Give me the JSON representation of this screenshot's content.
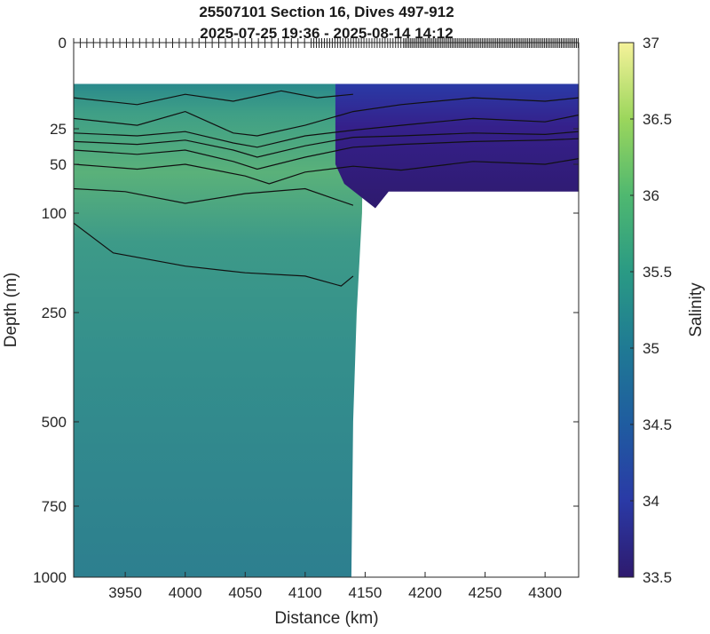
{
  "chart_data": {
    "type": "heatmap",
    "title": "25507101 Section 16, Dives 497-912",
    "subtitle": "2025-07-25 19:36 - 2025-08-14 14:12",
    "xlabel": "Distance (km)",
    "ylabel": "Depth (m)",
    "colorbar_label": "Salinity",
    "xlim": [
      3907,
      4328
    ],
    "ylim": [
      0,
      1000
    ],
    "x_ticks": [
      3950,
      4000,
      4050,
      4100,
      4150,
      4200,
      4250,
      4300
    ],
    "y_ticks": [
      0,
      25,
      50,
      100,
      250,
      500,
      750,
      1000
    ],
    "colorbar_ticks": [
      33.5,
      34,
      34.5,
      35,
      35.5,
      36,
      36.5,
      37
    ],
    "color_range": [
      33.5,
      37
    ],
    "colormap": [
      "#2e1a6e",
      "#2a3aa6",
      "#1f5ca0",
      "#1f7a94",
      "#2a9a84",
      "#4fb870",
      "#9bd65c",
      "#f5f29a"
    ],
    "grid": false,
    "data_coverage": {
      "deep_section_end_km": 4140,
      "shallow_section_end_km": 4328,
      "top_depth_m": 12,
      "shallow_max_depth_m": 78
    },
    "contours": [
      {
        "x": [
          3907,
          3960,
          4000,
          4040,
          4080,
          4110,
          4140
        ],
        "y": [
          16,
          18,
          15,
          17,
          14,
          16,
          15
        ]
      },
      {
        "x": [
          3907,
          3960,
          4000,
          4040,
          4060,
          4100,
          4140,
          4180,
          4240,
          4300,
          4328
        ],
        "y": [
          22,
          24,
          20,
          28,
          30,
          24,
          20,
          18,
          16,
          17,
          16
        ]
      },
      {
        "x": [
          3907,
          3960,
          4000,
          4040,
          4060,
          4100,
          4140,
          4180,
          4240,
          4300,
          4328
        ],
        "y": [
          28,
          30,
          27,
          35,
          38,
          30,
          26,
          24,
          22,
          23,
          21
        ]
      },
      {
        "x": [
          3907,
          3960,
          4000,
          4040,
          4060,
          4100,
          4140,
          4180,
          4240,
          4300,
          4328
        ],
        "y": [
          34,
          36,
          33,
          40,
          45,
          37,
          31,
          30,
          28,
          29,
          27
        ]
      },
      {
        "x": [
          3907,
          3960,
          4000,
          4040,
          4060,
          4100,
          4140,
          4180,
          4240,
          4300,
          4328
        ],
        "y": [
          40,
          43,
          40,
          48,
          55,
          45,
          38,
          36,
          34,
          33,
          32
        ]
      },
      {
        "x": [
          3907,
          3960,
          4000,
          4050,
          4070,
          4100,
          4140,
          4180,
          4240,
          4300,
          4328
        ],
        "y": [
          50,
          55,
          50,
          62,
          70,
          58,
          52,
          56,
          48,
          50,
          46
        ]
      },
      {
        "x": [
          3907,
          3950,
          4000,
          4050,
          4100,
          4140
        ],
        "y": [
          75,
          78,
          90,
          80,
          75,
          92
        ]
      },
      {
        "x": [
          3907,
          3940,
          4000,
          4050,
          4100,
          4130,
          4140
        ],
        "y": [
          115,
          160,
          180,
          190,
          195,
          210,
          195
        ]
      }
    ]
  }
}
